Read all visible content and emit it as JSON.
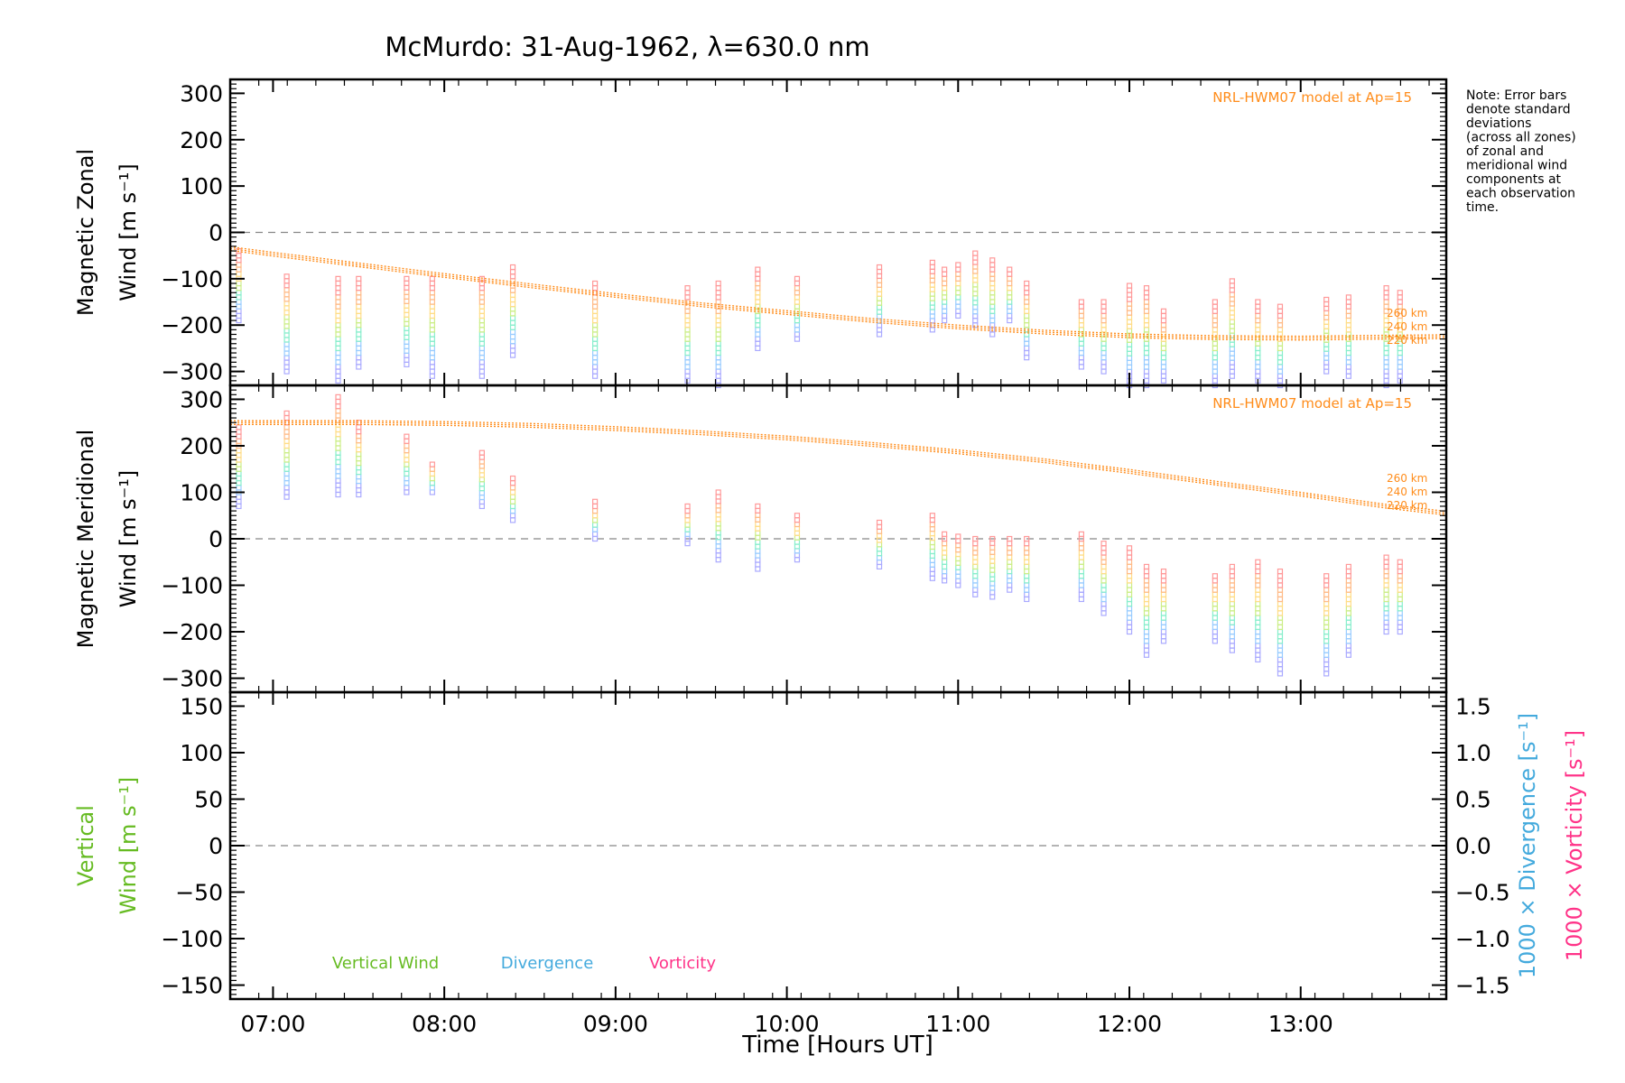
{
  "title": "McMurdo: 31-Aug-1962, λ=630.0 nm",
  "note_lines": [
    "Note: Error bars",
    "denote standard",
    "deviations",
    "(across all zones)",
    "of zonal and",
    "meridional wind",
    "components at",
    "each observation",
    "time."
  ],
  "colors": {
    "model": "#ff8c1a",
    "vertical": "#66bb22",
    "divergence": "#44aadd",
    "vorticity": "#ff3388",
    "zero_line": "#888888",
    "axis": "#000000"
  },
  "chart_data": [
    {
      "type": "scatter",
      "panel": "zonal",
      "ylabel_lines": [
        "Magnetic Zonal",
        "Wind [m s⁻¹]"
      ],
      "ylim": [
        -330,
        330
      ],
      "yticks": [
        300,
        200,
        100,
        0,
        -100,
        -200,
        -300
      ],
      "xlim": [
        6.75,
        13.85
      ],
      "model_label": "NRL-HWM07 model at Ap=15",
      "altitude_labels": [
        "260 km",
        "240 km",
        "220 km"
      ],
      "model_curve": {
        "x": [
          6.75,
          7.0,
          7.5,
          8.0,
          8.5,
          9.0,
          9.5,
          10.0,
          10.5,
          11.0,
          11.5,
          12.0,
          12.5,
          13.0,
          13.5,
          13.85
        ],
        "y": [
          -35,
          -47,
          -70,
          -93,
          -115,
          -136,
          -156,
          -173,
          -190,
          -204,
          -215,
          -223,
          -227,
          -228,
          -226,
          -225
        ]
      },
      "observations": [
        {
          "t": 6.8,
          "lo": -190,
          "hi": -40
        },
        {
          "t": 7.08,
          "lo": -300,
          "hi": -95
        },
        {
          "t": 7.38,
          "lo": -320,
          "hi": -100
        },
        {
          "t": 7.5,
          "lo": -290,
          "hi": -100
        },
        {
          "t": 7.78,
          "lo": -285,
          "hi": -100
        },
        {
          "t": 7.93,
          "lo": -310,
          "hi": -100
        },
        {
          "t": 8.22,
          "lo": -310,
          "hi": -100
        },
        {
          "t": 8.4,
          "lo": -265,
          "hi": -75
        },
        {
          "t": 8.88,
          "lo": -310,
          "hi": -110
        },
        {
          "t": 9.42,
          "lo": -320,
          "hi": -120
        },
        {
          "t": 9.6,
          "lo": -330,
          "hi": -110
        },
        {
          "t": 9.83,
          "lo": -250,
          "hi": -80
        },
        {
          "t": 10.06,
          "lo": -230,
          "hi": -100
        },
        {
          "t": 10.54,
          "lo": -220,
          "hi": -75
        },
        {
          "t": 10.85,
          "lo": -210,
          "hi": -65
        },
        {
          "t": 10.92,
          "lo": -190,
          "hi": -80
        },
        {
          "t": 11.0,
          "lo": -180,
          "hi": -70
        },
        {
          "t": 11.1,
          "lo": -200,
          "hi": -45
        },
        {
          "t": 11.2,
          "lo": -220,
          "hi": -60
        },
        {
          "t": 11.3,
          "lo": -190,
          "hi": -80
        },
        {
          "t": 11.4,
          "lo": -270,
          "hi": -110
        },
        {
          "t": 11.72,
          "lo": -290,
          "hi": -150
        },
        {
          "t": 11.85,
          "lo": -300,
          "hi": -150
        },
        {
          "t": 12.0,
          "lo": -330,
          "hi": -115
        },
        {
          "t": 12.1,
          "lo": -330,
          "hi": -120
        },
        {
          "t": 12.2,
          "lo": -320,
          "hi": -170
        },
        {
          "t": 12.5,
          "lo": -330,
          "hi": -150
        },
        {
          "t": 12.6,
          "lo": -310,
          "hi": -105
        },
        {
          "t": 12.75,
          "lo": -320,
          "hi": -150
        },
        {
          "t": 12.88,
          "lo": -330,
          "hi": -160
        },
        {
          "t": 13.15,
          "lo": -300,
          "hi": -145
        },
        {
          "t": 13.28,
          "lo": -310,
          "hi": -140
        },
        {
          "t": 13.5,
          "lo": -330,
          "hi": -120
        },
        {
          "t": 13.58,
          "lo": -320,
          "hi": -130
        }
      ]
    },
    {
      "type": "scatter",
      "panel": "meridional",
      "ylabel_lines": [
        "Magnetic Meridional",
        "Wind [m s⁻¹]"
      ],
      "ylim": [
        -330,
        330
      ],
      "yticks": [
        300,
        200,
        100,
        0,
        -100,
        -200,
        -300
      ],
      "xlim": [
        6.75,
        13.85
      ],
      "model_label": "NRL-HWM07 model at Ap=15",
      "altitude_labels": [
        "260 km",
        "240 km",
        "220 km"
      ],
      "model_curve": {
        "x": [
          6.75,
          7.0,
          7.5,
          8.0,
          8.5,
          9.0,
          9.5,
          10.0,
          10.5,
          11.0,
          11.5,
          12.0,
          12.5,
          13.0,
          13.5,
          13.85
        ],
        "y": [
          250,
          250,
          250,
          248,
          244,
          237,
          228,
          217,
          203,
          187,
          168,
          145,
          120,
          96,
          70,
          55
        ]
      },
      "observations": [
        {
          "t": 6.8,
          "lo": 70,
          "hi": 240
        },
        {
          "t": 7.08,
          "lo": 90,
          "hi": 270
        },
        {
          "t": 7.38,
          "lo": 95,
          "hi": 305
        },
        {
          "t": 7.5,
          "lo": 95,
          "hi": 250
        },
        {
          "t": 7.78,
          "lo": 100,
          "hi": 220
        },
        {
          "t": 7.93,
          "lo": 100,
          "hi": 160
        },
        {
          "t": 8.22,
          "lo": 70,
          "hi": 185
        },
        {
          "t": 8.4,
          "lo": 40,
          "hi": 130
        },
        {
          "t": 8.88,
          "lo": 0,
          "hi": 80
        },
        {
          "t": 9.42,
          "lo": -10,
          "hi": 70
        },
        {
          "t": 9.6,
          "lo": -45,
          "hi": 100
        },
        {
          "t": 9.83,
          "lo": -65,
          "hi": 70
        },
        {
          "t": 10.06,
          "lo": -45,
          "hi": 50
        },
        {
          "t": 10.54,
          "lo": -60,
          "hi": 35
        },
        {
          "t": 10.85,
          "lo": -85,
          "hi": 50
        },
        {
          "t": 10.92,
          "lo": -90,
          "hi": 10
        },
        {
          "t": 11.0,
          "lo": -100,
          "hi": 5
        },
        {
          "t": 11.1,
          "lo": -120,
          "hi": 0
        },
        {
          "t": 11.2,
          "lo": -125,
          "hi": 0
        },
        {
          "t": 11.3,
          "lo": -110,
          "hi": 0
        },
        {
          "t": 11.4,
          "lo": -130,
          "hi": 0
        },
        {
          "t": 11.72,
          "lo": -130,
          "hi": 10
        },
        {
          "t": 11.85,
          "lo": -160,
          "hi": -10
        },
        {
          "t": 12.0,
          "lo": -200,
          "hi": -20
        },
        {
          "t": 12.1,
          "lo": -250,
          "hi": -60
        },
        {
          "t": 12.2,
          "lo": -220,
          "hi": -70
        },
        {
          "t": 12.5,
          "lo": -220,
          "hi": -80
        },
        {
          "t": 12.6,
          "lo": -240,
          "hi": -60
        },
        {
          "t": 12.75,
          "lo": -260,
          "hi": -50
        },
        {
          "t": 12.88,
          "lo": -290,
          "hi": -70
        },
        {
          "t": 13.15,
          "lo": -290,
          "hi": -80
        },
        {
          "t": 13.28,
          "lo": -250,
          "hi": -60
        },
        {
          "t": 13.5,
          "lo": -200,
          "hi": -40
        },
        {
          "t": 13.58,
          "lo": -200,
          "hi": -50
        }
      ]
    },
    {
      "type": "line",
      "panel": "vertical",
      "ylabel_lines": [
        "Vertical",
        "Wind [m s⁻¹]"
      ],
      "ylim": [
        -165,
        165
      ],
      "yticks": [
        150,
        100,
        50,
        0,
        -50,
        -100,
        -150
      ],
      "xlim": [
        6.75,
        13.85
      ],
      "y2label_lines": [
        "1000 × Divergence [s⁻¹]",
        "1000 × Vorticity [s⁻¹]"
      ],
      "y2lim": [
        -1.65,
        1.65
      ],
      "y2ticks": [
        "1.5",
        "1.0",
        "0.5",
        "0.0",
        "−0.5",
        "−1.0",
        "−1.5"
      ],
      "legend": [
        "Vertical Wind",
        "Divergence",
        "Vorticity"
      ],
      "series": []
    }
  ],
  "xaxis": {
    "xlabel": "Time [Hours UT]",
    "ticks": [
      {
        "value": 7,
        "label": "07:00"
      },
      {
        "value": 8,
        "label": "08:00"
      },
      {
        "value": 9,
        "label": "09:00"
      },
      {
        "value": 10,
        "label": "10:00"
      },
      {
        "value": 11,
        "label": "11:00"
      },
      {
        "value": 12,
        "label": "12:00"
      },
      {
        "value": 13,
        "label": "13:00"
      }
    ]
  }
}
